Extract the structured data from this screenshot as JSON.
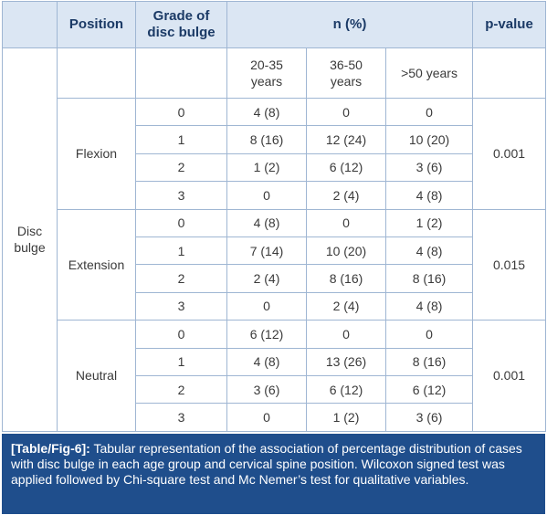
{
  "table": {
    "header": [
      "Position",
      "Grade of disc bulge",
      "n (%)",
      "p-value"
    ],
    "age_groups": [
      "20-35 years",
      "36-50 years",
      ">50 years"
    ],
    "row_label": "Disc bulge",
    "groups": [
      {
        "position": "Flexion",
        "p_value": "0.001",
        "rows": [
          [
            "0",
            "4 (8)",
            "0",
            "0"
          ],
          [
            "1",
            "8 (16)",
            "12 (24)",
            "10 (20)"
          ],
          [
            "2",
            "1 (2)",
            "6 (12)",
            "3 (6)"
          ],
          [
            "3",
            "0",
            "2 (4)",
            "4 (8)"
          ]
        ]
      },
      {
        "position": "Extension",
        "p_value": "0.015",
        "rows": [
          [
            "0",
            "4 (8)",
            "0",
            "1 (2)"
          ],
          [
            "1",
            "7 (14)",
            "10 (20)",
            "4 (8)"
          ],
          [
            "2",
            "2 (4)",
            "8 (16)",
            "8 (16)"
          ],
          [
            "3",
            "0",
            "2 (4)",
            "4 (8)"
          ]
        ]
      },
      {
        "position": "Neutral",
        "p_value": "0.001",
        "rows": [
          [
            "0",
            "6 (12)",
            "0",
            "0"
          ],
          [
            "1",
            "4 (8)",
            "13 (26)",
            "8 (16)"
          ],
          [
            "2",
            "3 (6)",
            "6 (12)",
            "6 (12)"
          ],
          [
            "3",
            "0",
            "1 (2)",
            "3 (6)"
          ]
        ]
      }
    ]
  },
  "caption": {
    "label": "[Table/Fig-6]:",
    "text": "Tabular representation of the association of percentage distribution of cases with disc bulge in each age group and cervical spine position. Wilcoxon signed test was applied followed by Chi-square test and Mc Nemer’s test for qualitative variables."
  }
}
